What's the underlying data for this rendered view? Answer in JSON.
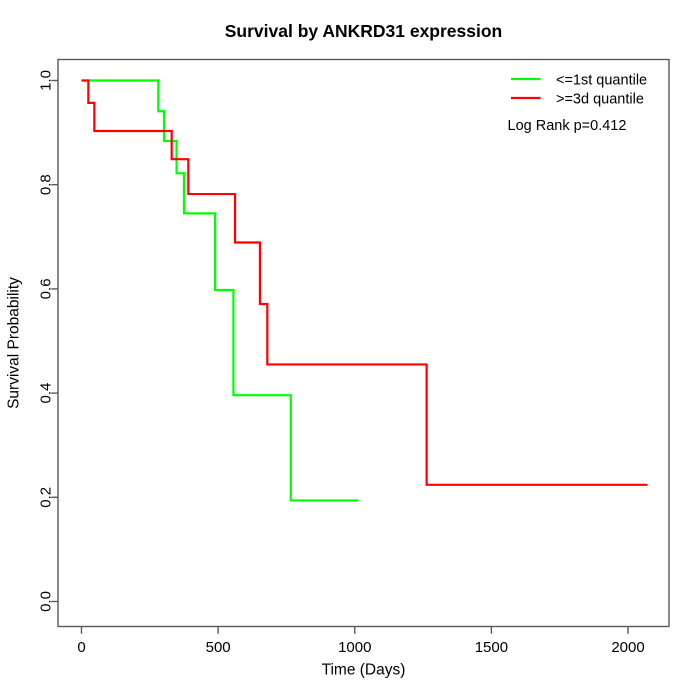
{
  "colors": {
    "background": "#ffffff",
    "axis": "#595959",
    "text": "#000000",
    "group_low": "#00ff00",
    "group_high": "#ff0000"
  },
  "chart_data": {
    "type": "line",
    "subtype": "kaplan-meier-step",
    "title": "Survival by ANKRD31 expression",
    "xlabel": "Time (Days)",
    "ylabel": "Survival Probability",
    "xlim": [
      0,
      2070
    ],
    "ylim": [
      0,
      1
    ],
    "grid": false,
    "x_ticks": [
      {
        "value": 0,
        "label": "0"
      },
      {
        "value": 500,
        "label": "500"
      },
      {
        "value": 1000,
        "label": "1000"
      },
      {
        "value": 1500,
        "label": "1500"
      },
      {
        "value": 2000,
        "label": "2000"
      }
    ],
    "y_ticks": [
      {
        "value": 0.0,
        "label": "0.0"
      },
      {
        "value": 0.2,
        "label": "0.2"
      },
      {
        "value": 0.4,
        "label": "0.4"
      },
      {
        "value": 0.6,
        "label": "0.6"
      },
      {
        "value": 0.8,
        "label": "0.8"
      },
      {
        "value": 1.0,
        "label": "1.0"
      }
    ],
    "legend": {
      "position": "top-right",
      "entries": [
        {
          "label": "<=1st quantile",
          "color": "#00ff00"
        },
        {
          "label": ">=3d quantile",
          "color": "#ff0000"
        }
      ]
    },
    "annotation": "Log Rank p=0.412",
    "series": [
      {
        "name": "<=1st quantile",
        "color": "#00ff00",
        "start": {
          "time": 0,
          "survival": 1.0
        },
        "steps": [
          {
            "time": 281,
            "survival": 0.941
          },
          {
            "time": 302,
            "survival": 0.884
          },
          {
            "time": 348,
            "survival": 0.822
          },
          {
            "time": 375,
            "survival": 0.745
          },
          {
            "time": 489,
            "survival": 0.598
          },
          {
            "time": 556,
            "survival": 0.396
          },
          {
            "time": 766,
            "survival": 0.194
          }
        ],
        "end_time": 1014
      },
      {
        "name": ">=3d quantile",
        "color": "#ff0000",
        "start": {
          "time": 0,
          "survival": 1.0
        },
        "steps": [
          {
            "time": 25,
            "survival": 0.957
          },
          {
            "time": 47,
            "survival": 0.903
          },
          {
            "time": 330,
            "survival": 0.849
          },
          {
            "time": 391,
            "survival": 0.782
          },
          {
            "time": 562,
            "survival": 0.689
          },
          {
            "time": 653,
            "survival": 0.571
          },
          {
            "time": 680,
            "survival": 0.455
          },
          {
            "time": 1263,
            "survival": 0.224
          }
        ],
        "end_time": 2071
      }
    ]
  }
}
